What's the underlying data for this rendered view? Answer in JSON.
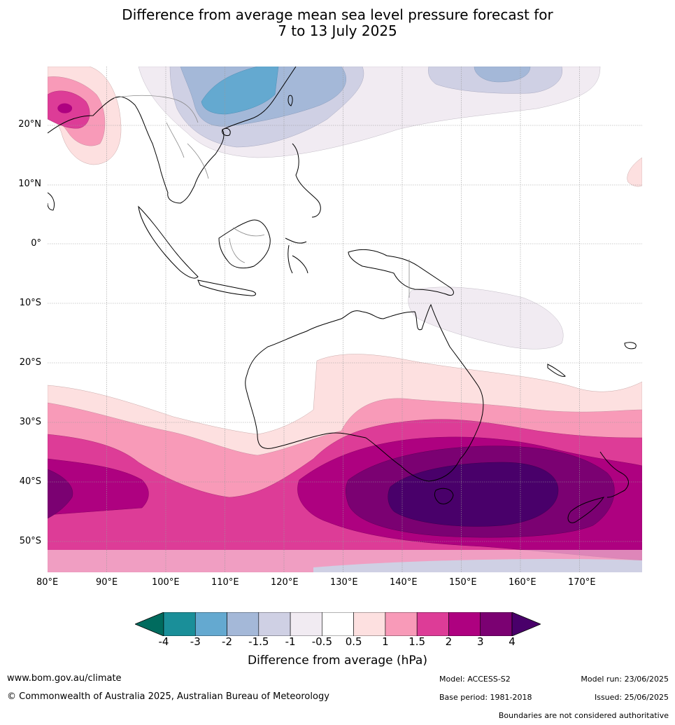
{
  "title": {
    "line1": "Difference from average mean sea level pressure forecast for",
    "line2": "7 to 13 July 2025"
  },
  "map": {
    "lat_labels": [
      "20°N",
      "10°N",
      "0°",
      "10°S",
      "20°S",
      "30°S",
      "40°S",
      "50°S"
    ],
    "lon_labels": [
      "80°E",
      "90°E",
      "100°E",
      "110°E",
      "120°E",
      "130°E",
      "140°E",
      "150°E",
      "160°E",
      "170°E"
    ]
  },
  "legend": {
    "ticks": [
      "-4",
      "-3",
      "-2",
      "-1.5",
      "-1",
      "-0.5",
      "0.5",
      "1",
      "1.5",
      "2",
      "3",
      "4"
    ],
    "colors": [
      "#006b5e",
      "#1a8f99",
      "#64a9d0",
      "#a4b8d8",
      "#cfd0e4",
      "#f1ebf2",
      "#ffffff",
      "#fde0e0",
      "#f89ab8",
      "#dd3c97",
      "#ae0180",
      "#7b0172",
      "#49006a"
    ],
    "label": "Difference from average (hPa)"
  },
  "footer": {
    "website": "www.bom.gov.au/climate",
    "copyright": "© Commonwealth of Australia 2025, Australian Bureau of Meteorology",
    "model": "Model: ACCESS-S2",
    "base_period": "Base period: 1981-2018",
    "model_run": "Model run: 23/06/2025",
    "issued": "Issued: 25/06/2025",
    "disclaimer": "Boundaries are not considered authoritative"
  }
}
